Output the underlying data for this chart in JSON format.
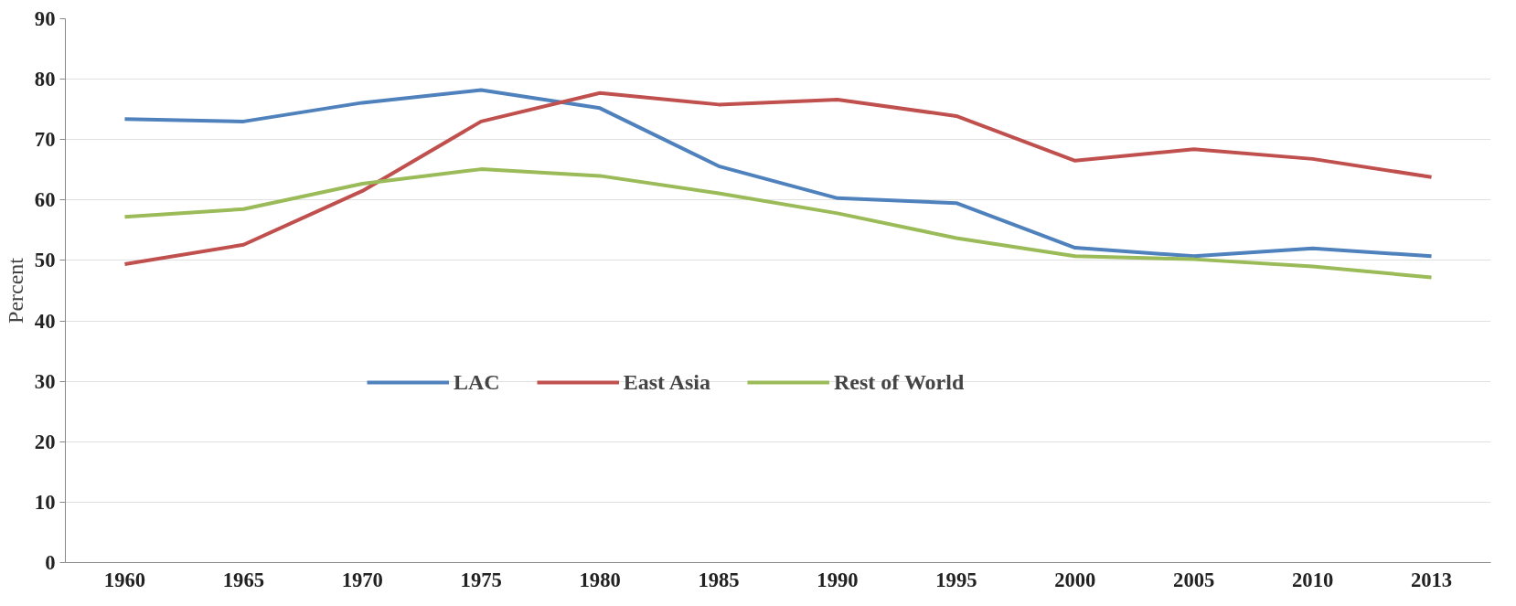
{
  "chart_data": {
    "type": "line",
    "ylabel": "Percent",
    "categories": [
      "1960",
      "1965",
      "1970",
      "1975",
      "1980",
      "1985",
      "1990",
      "1995",
      "2000",
      "2005",
      "2010",
      "2013"
    ],
    "series": [
      {
        "name": "LAC",
        "color": "#4f81bd",
        "values": [
          73.4,
          73.0,
          76.1,
          78.2,
          75.2,
          65.6,
          60.3,
          59.5,
          52.1,
          50.7,
          52.0,
          50.7
        ]
      },
      {
        "name": "East Asia",
        "color": "#c0504d",
        "values": [
          49.4,
          52.6,
          61.5,
          73.0,
          77.7,
          75.8,
          76.6,
          73.9,
          66.5,
          68.4,
          66.8,
          63.8
        ]
      },
      {
        "name": "Rest of World",
        "color": "#9bbb59",
        "values": [
          57.2,
          58.5,
          62.7,
          65.1,
          64.0,
          61.1,
          57.8,
          53.7,
          50.7,
          50.2,
          49.0,
          47.2
        ]
      }
    ],
    "ylim": [
      0,
      90
    ],
    "yticks": [
      0,
      10,
      20,
      30,
      40,
      50,
      60,
      70,
      80,
      90
    ],
    "grid": "y",
    "legend": "center",
    "marker": "none",
    "line_style": "solid"
  }
}
